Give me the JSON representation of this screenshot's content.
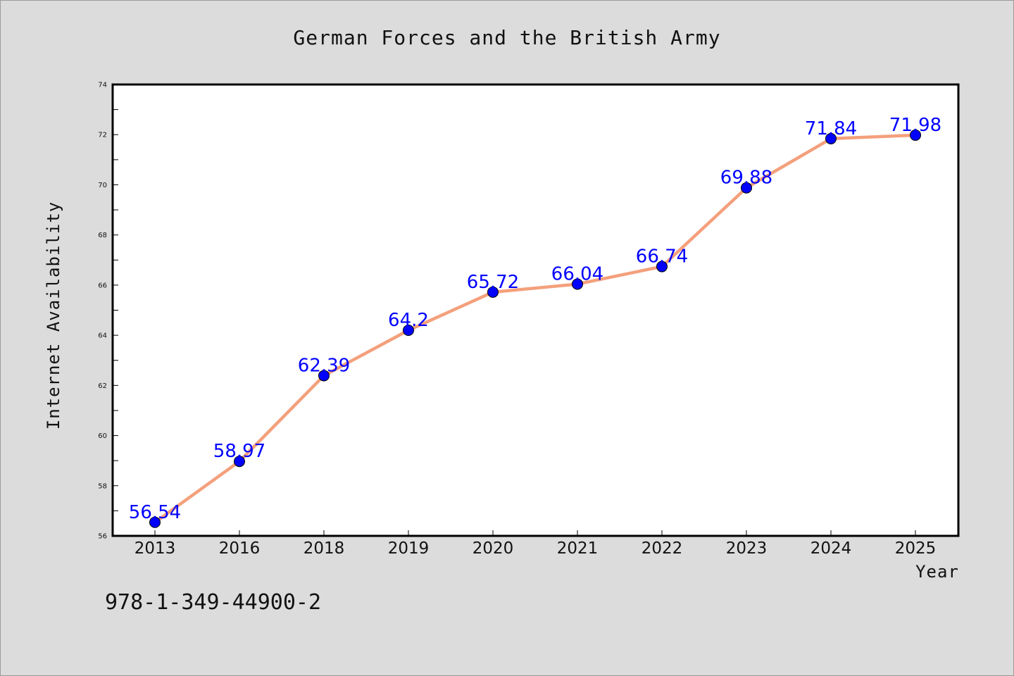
{
  "chart_data": {
    "type": "line",
    "title": "German Forces and the British Army",
    "xlabel": "Year",
    "ylabel": "Internet Availability",
    "categories": [
      "2013",
      "2016",
      "2018",
      "2019",
      "2020",
      "2021",
      "2022",
      "2023",
      "2024",
      "2025"
    ],
    "series": [
      {
        "values": [
          56.54,
          58.97,
          62.39,
          64.2,
          65.72,
          66.04,
          66.74,
          69.88,
          71.84,
          71.98
        ],
        "line_color": "#f4a07c",
        "marker_color": "#0000ff",
        "label_color": "#0000ff"
      }
    ],
    "data_labels": [
      "56.54",
      "58.97",
      "62.39",
      "64.2",
      "65.72",
      "66.04",
      "66.74",
      "69.88",
      "71.84",
      "71.98"
    ],
    "ylim": [
      56,
      74
    ],
    "yticks": [
      "56",
      "58",
      "60",
      "62",
      "64",
      "66",
      "68",
      "70",
      "72",
      "74"
    ],
    "grid": false,
    "legend": "none"
  },
  "footer": {
    "isbn": "978-1-349-44900-2"
  },
  "colors": {
    "background": "#dcdcdc",
    "plot_background": "#ffffff"
  }
}
